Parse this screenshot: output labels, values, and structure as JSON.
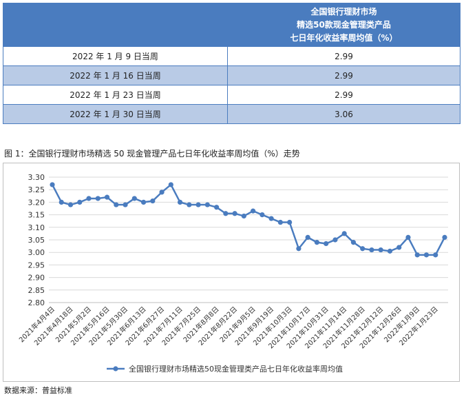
{
  "table": {
    "header": [
      "",
      "全国银行理财市场\n精选50款现金管理类产品\n七日年化收益率周均值（%）"
    ],
    "rows": [
      {
        "week": "2022 年 1 月 9 日当周",
        "value": "2.99"
      },
      {
        "week": "2022 年 1 月 16 日当周",
        "value": "2.99"
      },
      {
        "week": "2022 年 1 月 23 日当周",
        "value": "2.99"
      },
      {
        "week": "2022 年 1 月 30 日当周",
        "value": "3.06"
      }
    ]
  },
  "figure_title": "图 1：全国银行理财市场精选 50 现金管理产品七日年化收益率周均值（%）走势",
  "source": "数据来源：普益标准",
  "chart_data": {
    "type": "line",
    "ylim": [
      2.8,
      3.3
    ],
    "yticks": [
      "2.80",
      "2.85",
      "2.90",
      "2.95",
      "3.00",
      "3.05",
      "3.10",
      "3.15",
      "3.20",
      "3.25",
      "3.30"
    ],
    "xtick_labels": [
      "2021年4月4日",
      "2021年4月18日",
      "2021年5月2日",
      "2021年5月16日",
      "2021年5月30日",
      "2021年6月13日",
      "2021年6月27日",
      "2021年7月11日",
      "2021年7月25日",
      "2021年8月8日",
      "2021年8月22日",
      "2021年9月5日",
      "2021年9月19日",
      "2021年10月3日",
      "2021年10月17日",
      "2021年10月31日",
      "2021年11月14日",
      "2021年11月28日",
      "2021年12月12日",
      "2021年12月26日",
      "2022年1月9日",
      "2022年1月23日"
    ],
    "grid": true,
    "legend_position": "bottom",
    "series": [
      {
        "name": "全国银行理财市场精选50现金管理类产品七日年化收益率周均值",
        "color": "#4a7cbf",
        "values": [
          3.27,
          3.2,
          3.19,
          3.2,
          3.215,
          3.215,
          3.22,
          3.19,
          3.19,
          3.215,
          3.2,
          3.205,
          3.24,
          3.27,
          3.2,
          3.19,
          3.19,
          3.19,
          3.18,
          3.155,
          3.155,
          3.145,
          3.165,
          3.15,
          3.135,
          3.12,
          3.12,
          3.015,
          3.06,
          3.04,
          3.035,
          3.05,
          3.075,
          3.04,
          3.015,
          3.01,
          3.01,
          3.005,
          3.02,
          3.06,
          2.99,
          2.99,
          2.99,
          3.06
        ]
      }
    ]
  }
}
